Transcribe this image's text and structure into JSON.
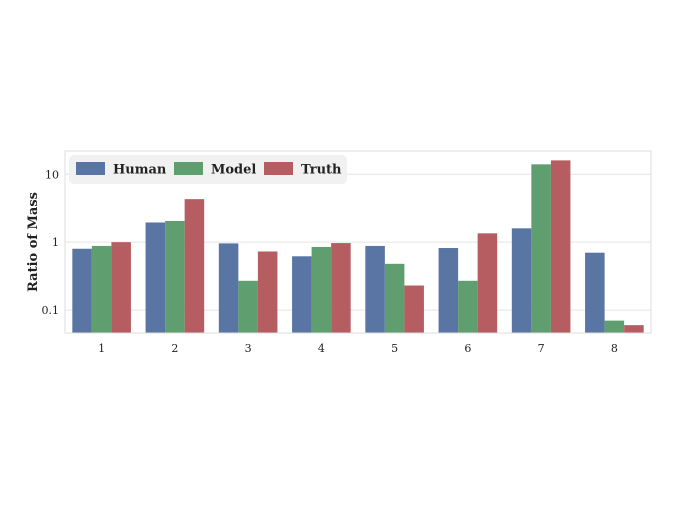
{
  "chart_data": {
    "type": "bar",
    "title": "",
    "xlabel": "",
    "ylabel": "Ratio of Mass",
    "yscale": "log",
    "ylim": [
      0.046,
      22
    ],
    "yticks": [
      {
        "value": 0.1,
        "label": "0.1"
      },
      {
        "value": 1,
        "label": "1"
      },
      {
        "value": 10,
        "label": "10"
      }
    ],
    "categories": [
      "1",
      "2",
      "3",
      "4",
      "5",
      "6",
      "7",
      "8"
    ],
    "series": [
      {
        "name": "Human",
        "color": "#5975a4",
        "values": [
          0.8,
          1.95,
          0.96,
          0.62,
          0.88,
          0.82,
          1.6,
          0.7
        ]
      },
      {
        "name": "Model",
        "color": "#5f9e6e",
        "values": [
          0.88,
          2.05,
          0.27,
          0.85,
          0.48,
          0.27,
          14.0,
          0.07
        ]
      },
      {
        "name": "Truth",
        "color": "#b55d60",
        "values": [
          1.0,
          4.3,
          0.73,
          0.97,
          0.23,
          1.35,
          16.0,
          0.06
        ]
      }
    ],
    "grid": true,
    "legend_position": "top-left",
    "background": "#ffffff",
    "gridcolor": "#e5e5e5",
    "framecolor": "#dddddd"
  }
}
